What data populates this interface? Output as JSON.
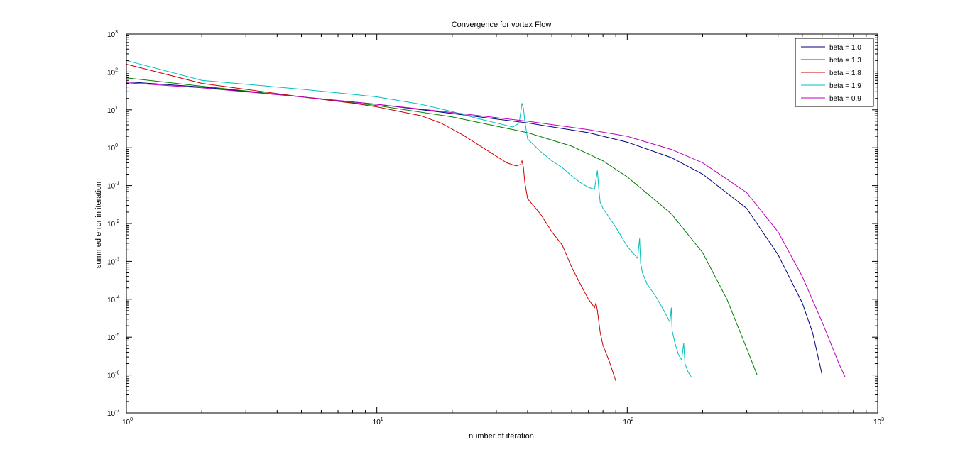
{
  "chart_data": {
    "type": "line",
    "title": "Convergence for vortex Flow",
    "xlabel": "number of iteration",
    "ylabel": "summed error in iteration",
    "xscale": "log",
    "yscale": "log",
    "xlim": [
      1,
      1000
    ],
    "ylim": [
      1e-07,
      1000
    ],
    "x_ticks": [
      {
        "base": "10",
        "exp": "0",
        "value": 1
      },
      {
        "base": "10",
        "exp": "1",
        "value": 10
      },
      {
        "base": "10",
        "exp": "2",
        "value": 100
      },
      {
        "base": "10",
        "exp": "3",
        "value": 1000
      }
    ],
    "y_ticks": [
      {
        "base": "10",
        "exp": "-7",
        "value": 1e-07
      },
      {
        "base": "10",
        "exp": "-6",
        "value": 1e-06
      },
      {
        "base": "10",
        "exp": "-5",
        "value": 1e-05
      },
      {
        "base": "10",
        "exp": "-4",
        "value": 0.0001
      },
      {
        "base": "10",
        "exp": "-3",
        "value": 0.001
      },
      {
        "base": "10",
        "exp": "-2",
        "value": 0.01
      },
      {
        "base": "10",
        "exp": "-1",
        "value": 0.1
      },
      {
        "base": "10",
        "exp": "0",
        "value": 1
      },
      {
        "base": "10",
        "exp": "1",
        "value": 10
      },
      {
        "base": "10",
        "exp": "2",
        "value": 100
      },
      {
        "base": "10",
        "exp": "3",
        "value": 1000
      }
    ],
    "grid": false,
    "legend_position": "top-right",
    "series": [
      {
        "name": "beta = 1.0",
        "color": "#00007f",
        "points": [
          [
            1,
            55
          ],
          [
            2,
            40
          ],
          [
            5,
            22
          ],
          [
            10,
            14
          ],
          [
            20,
            8
          ],
          [
            40,
            4.5
          ],
          [
            70,
            2.5
          ],
          [
            100,
            1.4
          ],
          [
            150,
            0.55
          ],
          [
            200,
            0.2
          ],
          [
            300,
            0.025
          ],
          [
            400,
            0.0015
          ],
          [
            500,
            8e-05
          ],
          [
            550,
            1.3e-05
          ],
          [
            600,
            1e-06
          ]
        ]
      },
      {
        "name": "beta = 1.3",
        "color": "#007f00",
        "points": [
          [
            1,
            70
          ],
          [
            2,
            42
          ],
          [
            5,
            22
          ],
          [
            10,
            13
          ],
          [
            20,
            6.5
          ],
          [
            40,
            2.5
          ],
          [
            60,
            1.1
          ],
          [
            80,
            0.45
          ],
          [
            100,
            0.17
          ],
          [
            150,
            0.018
          ],
          [
            200,
            0.0017
          ],
          [
            250,
            0.0001
          ],
          [
            300,
            5e-06
          ],
          [
            330,
            1e-06
          ]
        ]
      },
      {
        "name": "beta = 1.8",
        "color": "#cc0000",
        "points": [
          [
            1,
            160
          ],
          [
            2,
            50
          ],
          [
            5,
            22
          ],
          [
            8,
            15
          ],
          [
            10,
            12
          ],
          [
            15,
            7
          ],
          [
            18,
            4.5
          ],
          [
            22,
            2.2
          ],
          [
            28,
            0.8
          ],
          [
            33,
            0.4
          ],
          [
            36,
            0.33
          ],
          [
            37.5,
            0.36
          ],
          [
            38,
            0.45
          ],
          [
            38.5,
            0.3
          ],
          [
            39,
            0.12
          ],
          [
            40,
            0.045
          ],
          [
            45,
            0.018
          ],
          [
            50,
            0.006
          ],
          [
            55,
            0.0027
          ],
          [
            60,
            0.0007
          ],
          [
            65,
            0.00025
          ],
          [
            70,
            0.0001
          ],
          [
            74,
            6e-05
          ],
          [
            75,
            8e-05
          ],
          [
            76,
            5e-05
          ],
          [
            78,
            1.3e-05
          ],
          [
            80,
            6e-06
          ],
          [
            85,
            2.2e-06
          ],
          [
            90,
            7e-07
          ]
        ]
      },
      {
        "name": "beta = 1.9",
        "color": "#00bfbf",
        "points": [
          [
            1,
            200
          ],
          [
            2,
            60
          ],
          [
            5,
            35
          ],
          [
            10,
            22
          ],
          [
            15,
            14
          ],
          [
            20,
            9
          ],
          [
            25,
            6
          ],
          [
            30,
            4.5
          ],
          [
            35,
            3.5
          ],
          [
            37,
            4.5
          ],
          [
            38,
            15
          ],
          [
            38.5,
            11
          ],
          [
            39,
            5
          ],
          [
            40,
            1.7
          ],
          [
            45,
            0.8
          ],
          [
            50,
            0.45
          ],
          [
            55,
            0.3
          ],
          [
            60,
            0.18
          ],
          [
            65,
            0.12
          ],
          [
            70,
            0.09
          ],
          [
            74,
            0.08
          ],
          [
            76,
            0.25
          ],
          [
            77,
            0.08
          ],
          [
            78,
            0.035
          ],
          [
            80,
            0.025
          ],
          [
            90,
            0.008
          ],
          [
            100,
            0.0025
          ],
          [
            110,
            0.0012
          ],
          [
            112,
            0.004
          ],
          [
            113,
            0.0009
          ],
          [
            115,
            0.0005
          ],
          [
            120,
            0.00025
          ],
          [
            130,
            0.00012
          ],
          [
            140,
            5e-05
          ],
          [
            148,
            2.5e-05
          ],
          [
            150,
            6e-05
          ],
          [
            151,
            1.5e-05
          ],
          [
            155,
            7e-06
          ],
          [
            160,
            3.5e-06
          ],
          [
            165,
            2.5e-06
          ],
          [
            168,
            7e-06
          ],
          [
            170,
            2e-06
          ],
          [
            175,
            1.2e-06
          ],
          [
            180,
            9e-07
          ]
        ]
      },
      {
        "name": "beta = 0.9",
        "color": "#bf00bf",
        "points": [
          [
            1,
            52
          ],
          [
            2,
            38
          ],
          [
            5,
            22
          ],
          [
            10,
            14
          ],
          [
            20,
            8.5
          ],
          [
            40,
            5
          ],
          [
            70,
            3
          ],
          [
            100,
            2
          ],
          [
            150,
            0.9
          ],
          [
            200,
            0.4
          ],
          [
            300,
            0.065
          ],
          [
            400,
            0.006
          ],
          [
            500,
            0.0004
          ],
          [
            600,
            2.5e-05
          ],
          [
            700,
            2e-06
          ],
          [
            740,
            9e-07
          ]
        ]
      }
    ]
  }
}
